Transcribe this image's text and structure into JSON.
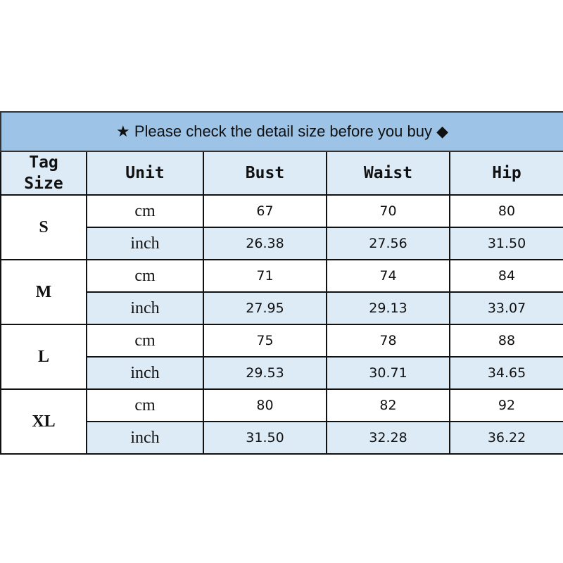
{
  "title": "★ Please check the detail size before you buy ◆",
  "headers": {
    "tag": "Tag",
    "size": "Size",
    "unit": "Unit",
    "bust": "Bust",
    "waist": "Waist",
    "hip": "Hip"
  },
  "rows": [
    {
      "size": "S",
      "cm": {
        "unit": "cm",
        "bust": "67",
        "waist": "70",
        "hip": "80"
      },
      "inch": {
        "unit": "inch",
        "bust": "26.38",
        "waist": "27.56",
        "hip": "31.50"
      }
    },
    {
      "size": "M",
      "cm": {
        "unit": "cm",
        "bust": "71",
        "waist": "74",
        "hip": "84"
      },
      "inch": {
        "unit": "inch",
        "bust": "27.95",
        "waist": "29.13",
        "hip": "33.07"
      }
    },
    {
      "size": "L",
      "cm": {
        "unit": "cm",
        "bust": "75",
        "waist": "78",
        "hip": "88"
      },
      "inch": {
        "unit": "inch",
        "bust": "29.53",
        "waist": "30.71",
        "hip": "34.65"
      }
    },
    {
      "size": "XL",
      "cm": {
        "unit": "cm",
        "bust": "80",
        "waist": "82",
        "hip": "92"
      },
      "inch": {
        "unit": "inch",
        "bust": "31.50",
        "waist": "32.28",
        "hip": "36.22"
      }
    }
  ],
  "colors": {
    "title_bg": "#9dc3e6",
    "header_bg": "#ddebf7",
    "inch_row_bg": "#ddebf7"
  }
}
